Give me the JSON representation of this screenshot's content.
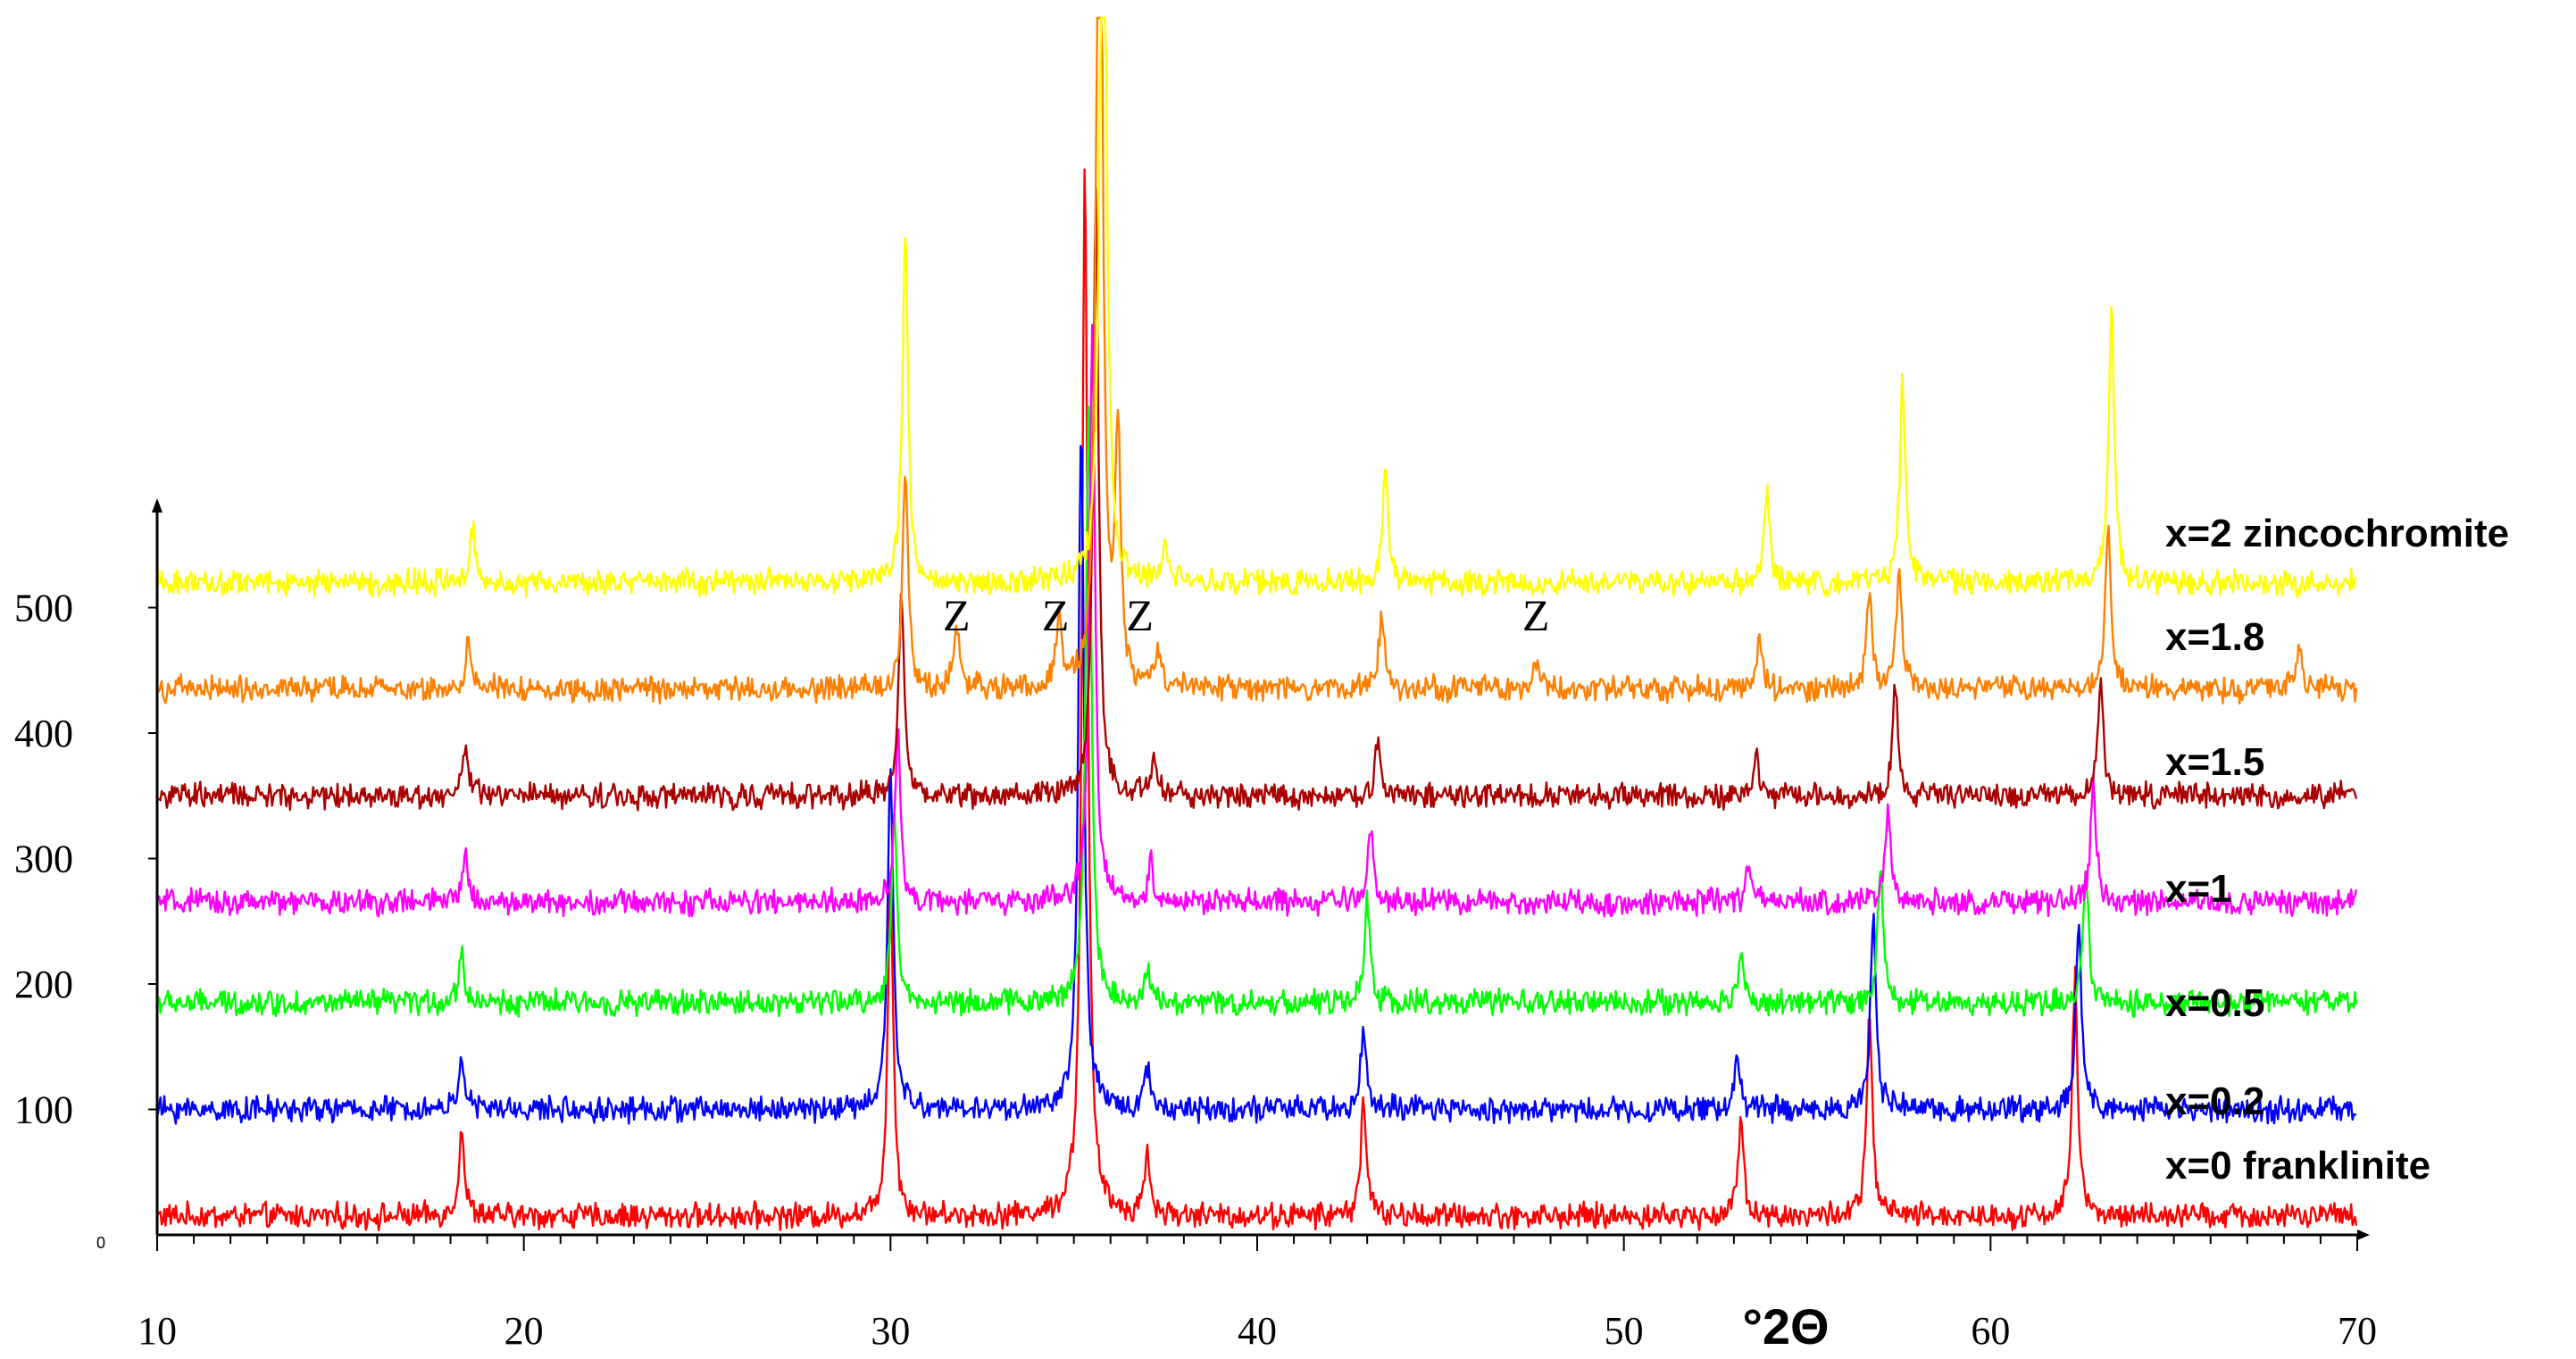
{
  "chart_data": {
    "type": "line",
    "xlabel": "°2Θ",
    "ylabel": "",
    "xlim": [
      10,
      70
    ],
    "ylim": [
      0,
      1000
    ],
    "grid": false,
    "x_ticks": [
      10,
      20,
      30,
      40,
      50,
      60,
      70
    ],
    "x_tick_labels": [
      "10",
      "20",
      "30",
      "40",
      "50",
      "60",
      "70"
    ],
    "y_ticks": [
      100,
      200,
      300,
      400,
      500
    ],
    "y_tick_labels": [
      "100",
      "200",
      "300",
      "400",
      "500"
    ],
    "y_origin_label": "0",
    "series": [
      {
        "name": "x=0 franklinite",
        "color": "#ff0000",
        "baseline": 15,
        "peaks": [
          [
            18.3,
            70
          ],
          [
            30.0,
            270
          ],
          [
            35.3,
            850
          ],
          [
            37.0,
            50
          ],
          [
            42.9,
            95
          ],
          [
            53.2,
            80
          ],
          [
            56.7,
            160
          ],
          [
            62.3,
            190
          ]
        ]
      },
      {
        "name": "x=0.2",
        "color": "#0000ff",
        "baseline": 100,
        "peaks": [
          [
            18.3,
            45
          ],
          [
            30.0,
            280
          ],
          [
            35.2,
            550
          ],
          [
            37.0,
            35
          ],
          [
            42.9,
            65
          ],
          [
            53.1,
            45
          ],
          [
            56.8,
            150
          ],
          [
            62.4,
            150
          ]
        ]
      },
      {
        "name": "x=0.5",
        "color": "#00ff00",
        "baseline": 185,
        "peaks": [
          [
            18.3,
            40
          ],
          [
            30.1,
            150
          ],
          [
            35.4,
            480
          ],
          [
            37.0,
            25
          ],
          [
            43.0,
            80
          ],
          [
            53.2,
            40
          ],
          [
            57.0,
            110
          ],
          [
            62.6,
            100
          ]
        ]
      },
      {
        "name": "x=1",
        "color": "#ff00ff",
        "baseline": 265,
        "peaks": [
          [
            18.4,
            40
          ],
          [
            30.2,
            140
          ],
          [
            35.5,
            460
          ],
          [
            37.1,
            30
          ],
          [
            43.1,
            60
          ],
          [
            53.4,
            30
          ],
          [
            57.2,
            75
          ],
          [
            62.8,
            95
          ]
        ]
      },
      {
        "name": "x=1.5",
        "color": "#aa0000",
        "baseline": 350,
        "peaks": [
          [
            18.4,
            40
          ],
          [
            30.3,
            160
          ],
          [
            35.6,
            480
          ],
          [
            37.2,
            30
          ],
          [
            43.3,
            45
          ],
          [
            53.6,
            30
          ],
          [
            57.4,
            90
          ],
          [
            63.0,
            95
          ]
        ]
      },
      {
        "name": "x=1.8",
        "color": "#ff8000",
        "baseline": 435,
        "peaks": [
          [
            18.5,
            40
          ],
          [
            30.4,
            180
          ],
          [
            31.8,
            50
          ],
          [
            34.6,
            60
          ],
          [
            35.7,
            880
          ],
          [
            36.2,
            200
          ],
          [
            37.3,
            25
          ],
          [
            43.4,
            65
          ],
          [
            47.6,
            25
          ],
          [
            53.7,
            40
          ],
          [
            56.7,
            80
          ],
          [
            57.5,
            95
          ],
          [
            63.2,
            130
          ],
          [
            68.4,
            35
          ]
        ]
      },
      {
        "name": "x=2 zincochromite",
        "color": "#ffff00",
        "baseline": 520,
        "peaks": [
          [
            18.6,
            45
          ],
          [
            30.4,
            280
          ],
          [
            35.8,
            780
          ],
          [
            37.5,
            30
          ],
          [
            43.5,
            95
          ],
          [
            53.9,
            70
          ],
          [
            57.6,
            160
          ],
          [
            63.3,
            220
          ]
        ]
      }
    ],
    "annotations": [
      {
        "text": "Z",
        "x": 31.8
      },
      {
        "text": "Z",
        "x": 34.5
      },
      {
        "text": "Z",
        "x": 36.8
      },
      {
        "text": "Z",
        "x": 47.6
      }
    ]
  }
}
